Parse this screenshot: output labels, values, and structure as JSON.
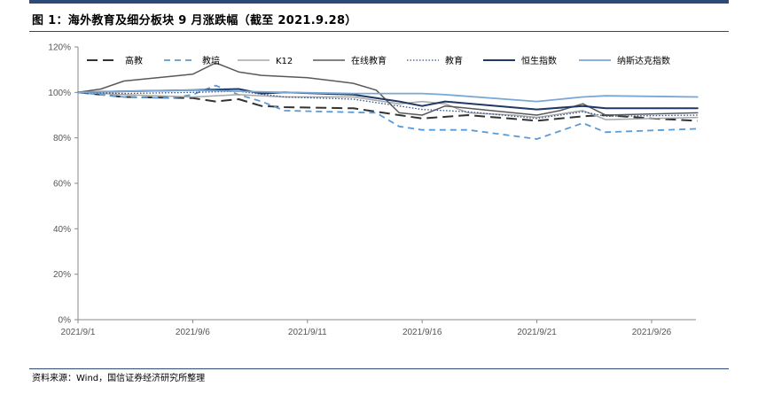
{
  "header": {
    "title": "图 1：海外教育及细分板块 9 月涨跌幅（截至 2021.9.28）"
  },
  "footer": {
    "source": "资料来源：Wind，国信证券经济研究所整理"
  },
  "colors": {
    "rule": "#2b4a7a"
  },
  "chart_data": {
    "type": "line",
    "title": "",
    "xlabel": "",
    "ylabel": "",
    "ylim": [
      0,
      120
    ],
    "yticks": [
      "0%",
      "20%",
      "40%",
      "60%",
      "80%",
      "100%",
      "120%"
    ],
    "ytick_values": [
      0,
      20,
      40,
      60,
      80,
      100,
      120
    ],
    "xlim": [
      "2021/9/1",
      "2021/9/28"
    ],
    "xticks": [
      "2021/9/1",
      "2021/9/6",
      "2021/9/11",
      "2021/9/16",
      "2021/9/21",
      "2021/9/26"
    ],
    "legend_position": "top",
    "grid": false,
    "series": [
      {
        "name": "高教",
        "color": "#333333",
        "dash": "12,6",
        "width": 2,
        "points": [
          [
            "2021/9/1",
            100
          ],
          [
            "2021/9/3",
            98
          ],
          [
            "2021/9/6",
            97.5
          ],
          [
            "2021/9/7",
            96
          ],
          [
            "2021/9/8",
            97
          ],
          [
            "2021/9/9",
            94
          ],
          [
            "2021/9/10",
            93.5
          ],
          [
            "2021/9/13",
            93
          ],
          [
            "2021/9/15",
            90
          ],
          [
            "2021/9/16",
            88.5
          ],
          [
            "2021/9/18",
            90
          ],
          [
            "2021/9/21",
            87.5
          ],
          [
            "2021/9/23",
            89.5
          ],
          [
            "2021/9/24",
            90
          ],
          [
            "2021/9/26",
            88.5
          ],
          [
            "2021/9/28",
            87.5
          ]
        ]
      },
      {
        "name": "教培",
        "color": "#5b9bd5",
        "dash": "7,5",
        "width": 1.8,
        "points": [
          [
            "2021/9/1",
            100
          ],
          [
            "2021/9/3",
            98
          ],
          [
            "2021/9/5",
            97.5
          ],
          [
            "2021/9/6",
            99
          ],
          [
            "2021/9/7",
            103
          ],
          [
            "2021/9/8",
            99
          ],
          [
            "2021/9/9",
            96
          ],
          [
            "2021/9/10",
            92
          ],
          [
            "2021/9/12",
            91.5
          ],
          [
            "2021/9/14",
            91
          ],
          [
            "2021/9/15",
            85
          ],
          [
            "2021/9/16",
            83.5
          ],
          [
            "2021/9/17",
            83.5
          ],
          [
            "2021/9/18",
            83.5
          ],
          [
            "2021/9/21",
            79.5
          ],
          [
            "2021/9/23",
            86.5
          ],
          [
            "2021/9/24",
            82.5
          ],
          [
            "2021/9/28",
            84
          ]
        ]
      },
      {
        "name": "K12",
        "color": "#a6a6a6",
        "dash": "",
        "width": 1.5,
        "points": [
          [
            "2021/9/1",
            100
          ],
          [
            "2021/9/3",
            99
          ],
          [
            "2021/9/6",
            98
          ],
          [
            "2021/9/8",
            99
          ],
          [
            "2021/9/10",
            98
          ],
          [
            "2021/9/13",
            98
          ],
          [
            "2021/9/15",
            95
          ],
          [
            "2021/9/16",
            96
          ],
          [
            "2021/9/17",
            95
          ],
          [
            "2021/9/18",
            91
          ],
          [
            "2021/9/20",
            90
          ],
          [
            "2021/9/21",
            89
          ],
          [
            "2021/9/23",
            92
          ],
          [
            "2021/9/24",
            88
          ],
          [
            "2021/9/28",
            89
          ]
        ]
      },
      {
        "name": "在线教育",
        "color": "#595959",
        "dash": "",
        "width": 1.5,
        "points": [
          [
            "2021/9/1",
            100
          ],
          [
            "2021/9/2",
            101.5
          ],
          [
            "2021/9/3",
            105
          ],
          [
            "2021/9/5",
            107
          ],
          [
            "2021/9/6",
            108
          ],
          [
            "2021/9/7",
            113
          ],
          [
            "2021/9/8",
            109
          ],
          [
            "2021/9/9",
            107.5
          ],
          [
            "2021/9/11",
            106.5
          ],
          [
            "2021/9/13",
            104
          ],
          [
            "2021/9/14",
            101
          ],
          [
            "2021/9/15",
            91
          ],
          [
            "2021/9/16",
            90
          ],
          [
            "2021/9/17",
            94
          ],
          [
            "2021/9/18",
            93
          ],
          [
            "2021/9/21",
            90
          ],
          [
            "2021/9/22",
            92
          ],
          [
            "2021/9/23",
            95
          ],
          [
            "2021/9/24",
            90
          ],
          [
            "2021/9/28",
            91
          ]
        ]
      },
      {
        "name": "教育",
        "color": "#2e4f86",
        "dash": "1.5,2",
        "width": 1.3,
        "points": [
          [
            "2021/9/1",
            100
          ],
          [
            "2021/9/3",
            99.5
          ],
          [
            "2021/9/6",
            100
          ],
          [
            "2021/9/8",
            100.5
          ],
          [
            "2021/9/10",
            98
          ],
          [
            "2021/9/13",
            97
          ],
          [
            "2021/9/15",
            94
          ],
          [
            "2021/9/16",
            92.5
          ],
          [
            "2021/9/18",
            91.5
          ],
          [
            "2021/9/21",
            88.5
          ],
          [
            "2021/9/23",
            91.5
          ],
          [
            "2021/9/24",
            89.5
          ],
          [
            "2021/9/28",
            90
          ]
        ]
      },
      {
        "name": "恒生指数",
        "color": "#1f3864",
        "dash": "",
        "width": 2,
        "points": [
          [
            "2021/9/1",
            100
          ],
          [
            "2021/9/3",
            100.5
          ],
          [
            "2021/9/6",
            101
          ],
          [
            "2021/9/8",
            101.5
          ],
          [
            "2021/9/9",
            99.5
          ],
          [
            "2021/9/10",
            100
          ],
          [
            "2021/9/13",
            99
          ],
          [
            "2021/9/15",
            96
          ],
          [
            "2021/9/16",
            94
          ],
          [
            "2021/9/17",
            96
          ],
          [
            "2021/9/21",
            92.5
          ],
          [
            "2021/9/23",
            94
          ],
          [
            "2021/9/24",
            93
          ],
          [
            "2021/9/28",
            93
          ]
        ]
      },
      {
        "name": "纳斯达克指数",
        "color": "#7aa8d6",
        "dash": "",
        "width": 1.8,
        "points": [
          [
            "2021/9/1",
            100
          ],
          [
            "2021/9/3",
            100.5
          ],
          [
            "2021/9/6",
            101
          ],
          [
            "2021/9/8",
            100.5
          ],
          [
            "2021/9/10",
            100
          ],
          [
            "2021/9/13",
            99.5
          ],
          [
            "2021/9/15",
            99.5
          ],
          [
            "2021/9/16",
            99.5
          ],
          [
            "2021/9/17",
            99
          ],
          [
            "2021/9/21",
            96
          ],
          [
            "2021/9/23",
            98
          ],
          [
            "2021/9/24",
            98.5
          ],
          [
            "2021/9/28",
            98
          ]
        ]
      }
    ]
  }
}
